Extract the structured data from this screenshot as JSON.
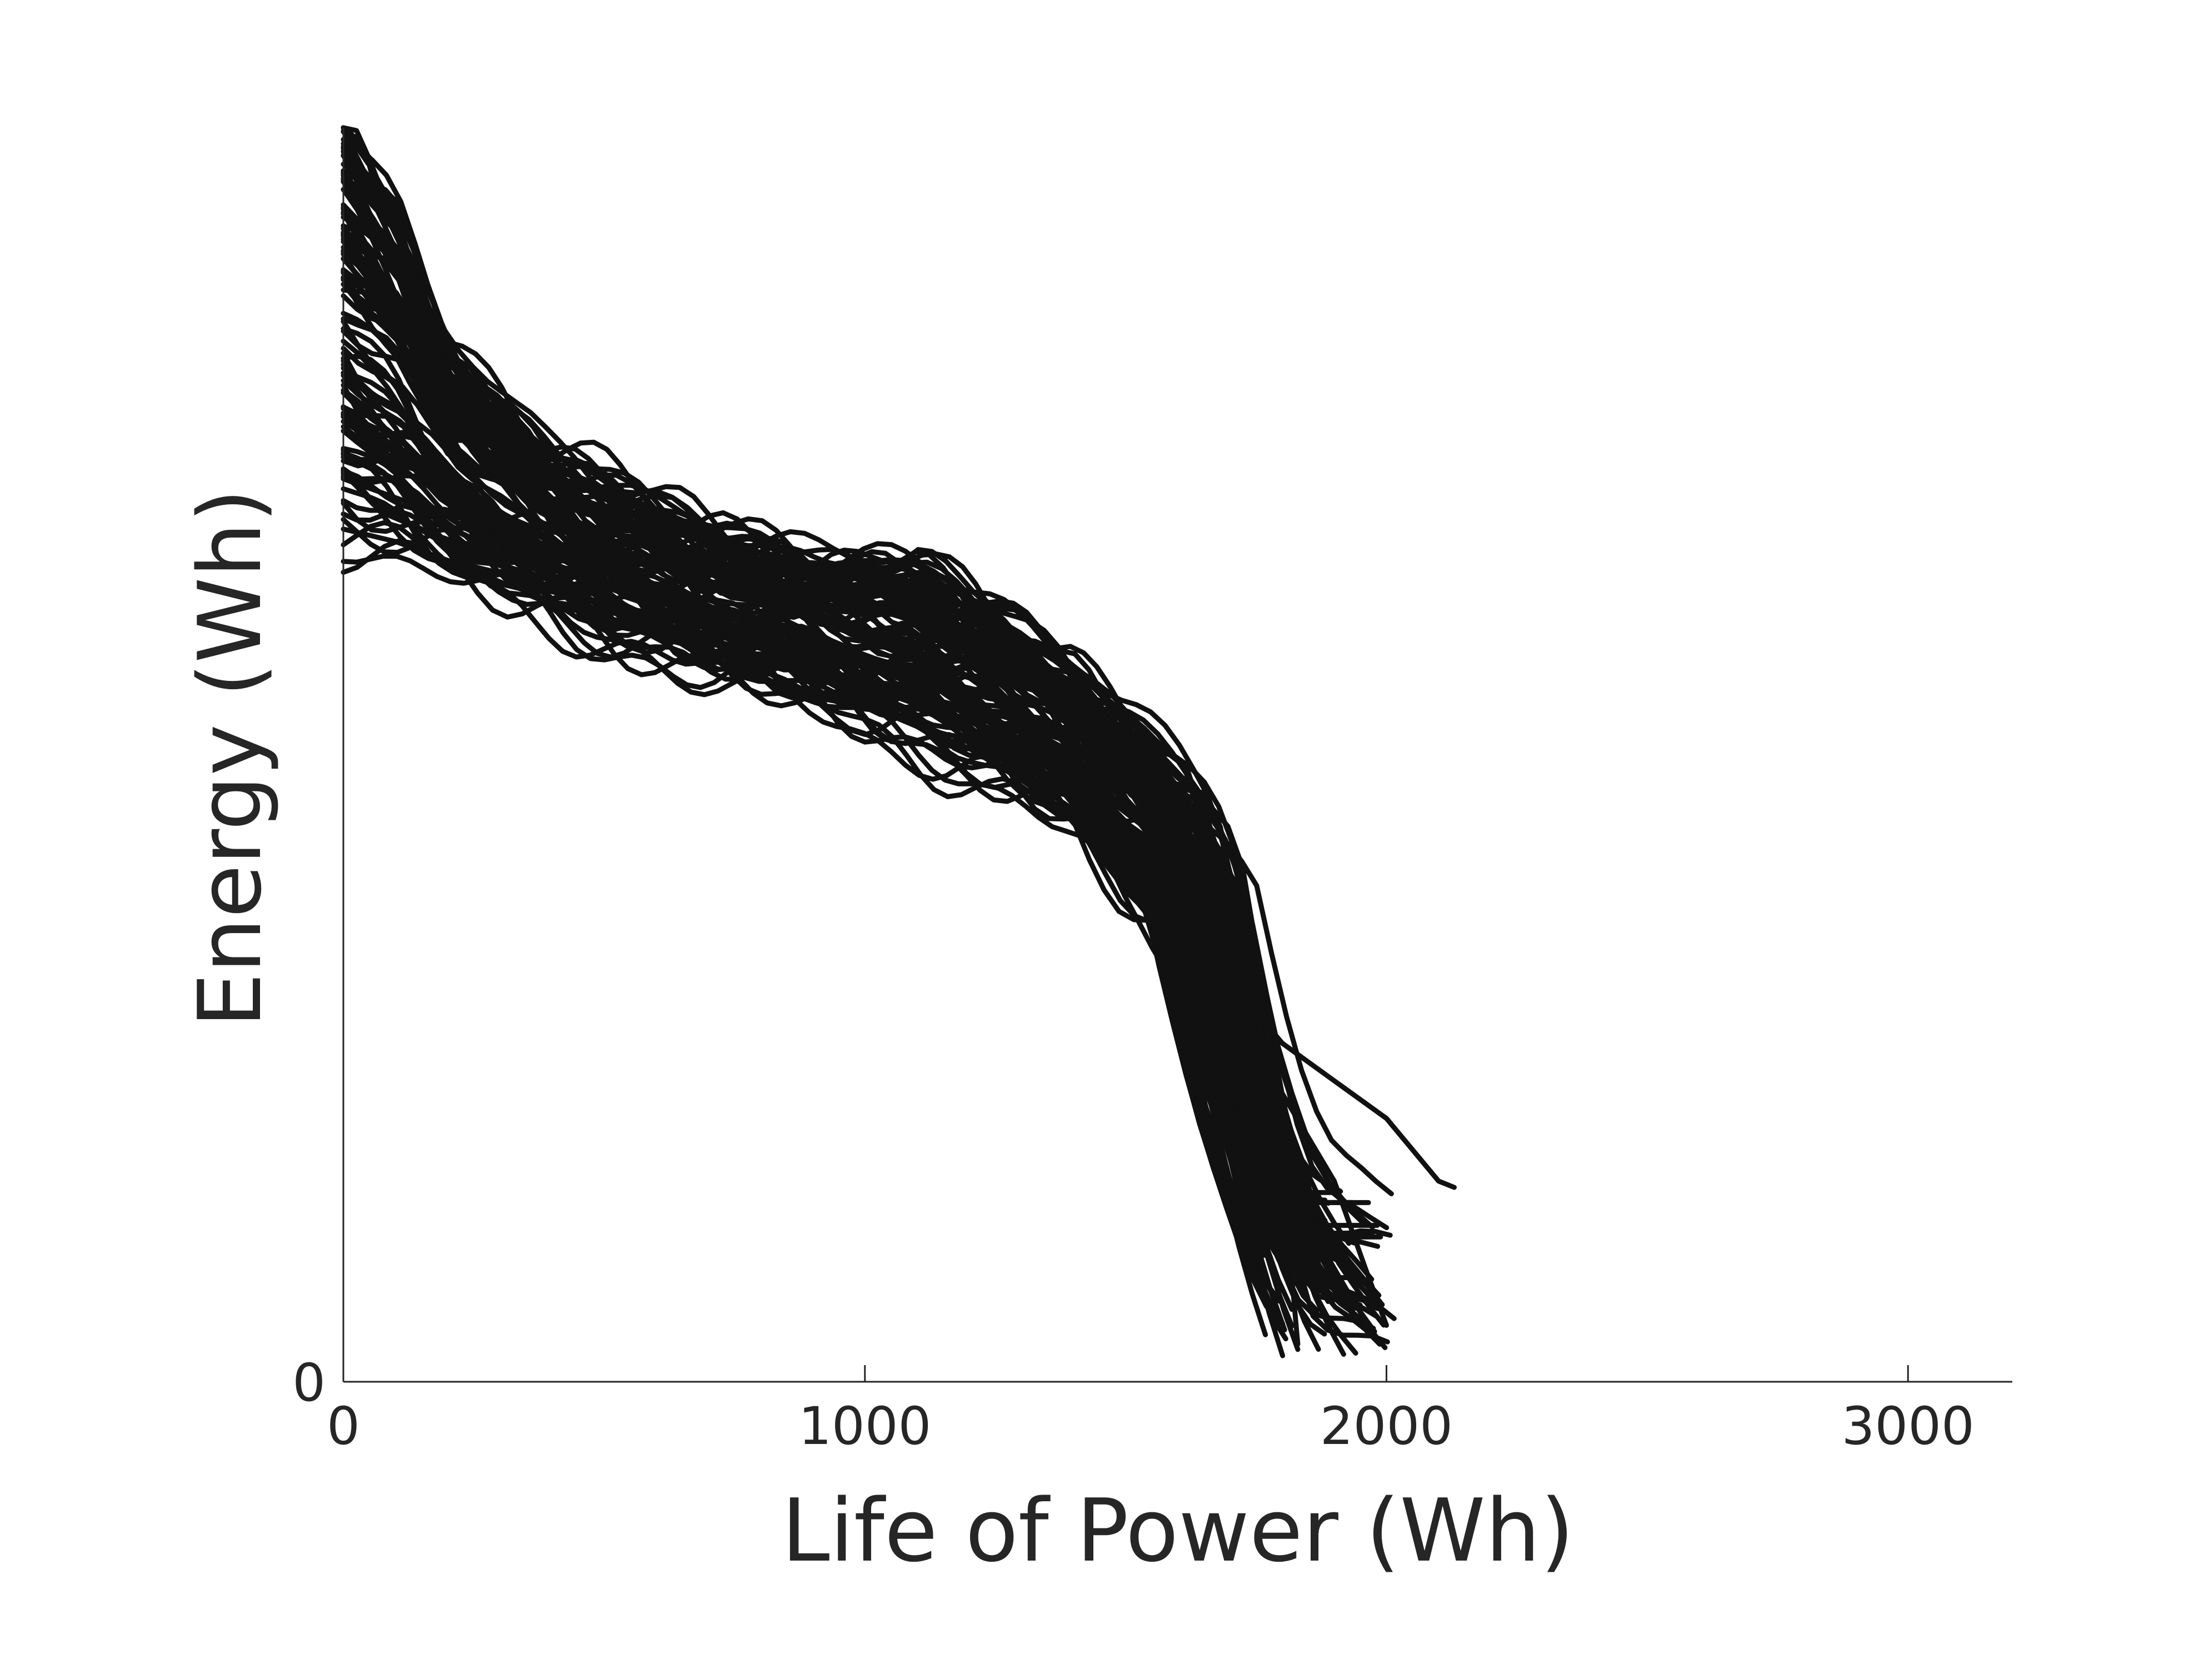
{
  "chart_data": {
    "type": "line",
    "title": "",
    "xlabel": "Life of Power (Wh)",
    "ylabel": "Energy (Wh)",
    "xlim": [
      0,
      3200
    ],
    "ylim": [
      0,
      1000
    ],
    "x_ticks": [
      0,
      1000,
      2000,
      3000
    ],
    "y_ticks": [
      0
    ],
    "x_tick_labels": [
      "0",
      "1000",
      "2000",
      "3000"
    ],
    "y_tick_labels": [
      "0"
    ],
    "grid": false,
    "legend": "none",
    "line_color": "#111111",
    "series_count": 110,
    "envelope": {
      "x": [
        0,
        100,
        200,
        300,
        400,
        500,
        600,
        700,
        800,
        900,
        1000,
        1100,
        1200,
        1300,
        1400,
        1500,
        1600,
        1650,
        1700,
        1750,
        1800,
        1850,
        1900,
        1950,
        2000,
        2050,
        2100,
        2130
      ],
      "y_upper": [
        1000,
        940,
        830,
        790,
        740,
        720,
        695,
        680,
        670,
        660,
        655,
        650,
        625,
        600,
        575,
        535,
        500,
        480,
        450,
        400,
        335,
        290,
        255,
        250,
        230,
        180,
        155,
        150
      ],
      "y_lower": [
        670,
        655,
        640,
        620,
        610,
        595,
        580,
        565,
        550,
        540,
        520,
        505,
        490,
        465,
        440,
        375,
        340,
        310,
        270,
        215,
        150,
        25,
        20,
        45,
        85,
        120,
        150,
        150
      ]
    },
    "endpoints": {
      "x_range": [
        1760,
        2130
      ],
      "y_range": [
        20,
        155
      ]
    },
    "representative_series": [
      {
        "x": [
          0,
          50,
          100,
          200,
          300,
          400,
          500,
          600,
          700,
          800,
          900,
          1000,
          1100,
          1200,
          1300,
          1400,
          1500,
          1600,
          1700,
          1750,
          1800,
          1830
        ],
        "y": [
          1000,
          970,
          890,
          800,
          770,
          730,
          710,
          690,
          675,
          660,
          650,
          640,
          620,
          600,
          575,
          545,
          500,
          450,
          370,
          300,
          170,
          30
        ]
      },
      {
        "x": [
          0,
          100,
          200,
          300,
          400,
          500,
          600,
          700,
          800,
          900,
          1000,
          1100,
          1200,
          1300,
          1400,
          1500,
          1600,
          1700,
          1800,
          1900,
          2000,
          2100,
          2130
        ],
        "y": [
          680,
          670,
          655,
          645,
          630,
          620,
          605,
          590,
          575,
          565,
          555,
          540,
          520,
          495,
          465,
          420,
          370,
          320,
          270,
          240,
          210,
          160,
          155
        ]
      },
      {
        "x": [
          0,
          200,
          400,
          500,
          520,
          700,
          800,
          900,
          1000,
          1200,
          1300,
          1400,
          1500,
          1600,
          1700,
          1800,
          1900,
          1960,
          2000
        ],
        "y": [
          720,
          690,
          640,
          610,
          620,
          580,
          560,
          550,
          540,
          505,
          480,
          450,
          400,
          350,
          300,
          230,
          160,
          90,
          45
        ]
      }
    ]
  }
}
